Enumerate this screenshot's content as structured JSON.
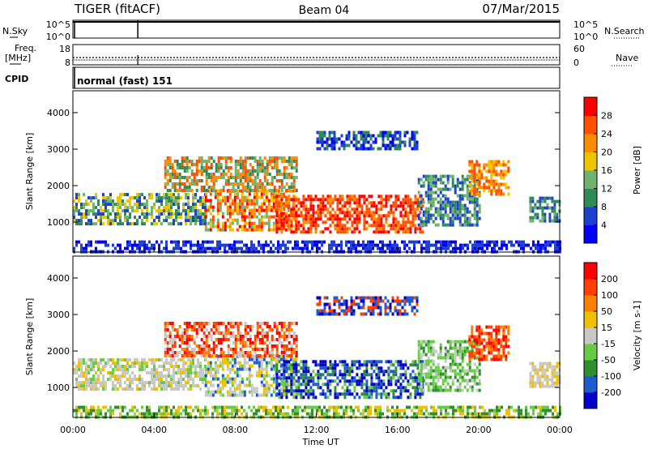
{
  "header": {
    "radar": "TIGER (fitACF)",
    "beam": "Beam 04",
    "date": "07/Mar/2015"
  },
  "nsky_panel": {
    "left_label": "N.Sky",
    "right_label": "N.Search",
    "left_ticks": [
      "10^5",
      "10^0"
    ],
    "right_ticks": [
      "10^5",
      "10^0"
    ]
  },
  "freq_panel": {
    "left_label_1": "Freq.",
    "left_label_2": "[MHz]",
    "right_label": "Nave",
    "left_ticks": [
      "18",
      "8"
    ],
    "right_ticks": [
      "60",
      "0"
    ]
  },
  "cpid_panel": {
    "label": "CPID",
    "value": "normal (fast) 151"
  },
  "chart_data": [
    {
      "type": "heatmap",
      "title": "",
      "ylabel": "Slant Range [km]",
      "xlabel": "",
      "ylim": [
        180,
        4600
      ],
      "yticks": [
        1000,
        2000,
        3000,
        4000
      ],
      "colorbar": {
        "label": "Power [dB]",
        "ticks": [
          "4",
          "8",
          "12",
          "16",
          "20",
          "24",
          "28"
        ],
        "range": [
          0,
          32
        ],
        "colors": [
          "#0000ff",
          "#1f3fd0",
          "#2e8b57",
          "#6fb36f",
          "#f0c400",
          "#ff8c00",
          "#ff5000",
          "#ff0000"
        ]
      }
    },
    {
      "type": "heatmap",
      "title": "",
      "ylabel": "Slant Range [km]",
      "xlabel": "Time UT",
      "ylim": [
        180,
        4600
      ],
      "yticks": [
        1000,
        2000,
        3000,
        4000
      ],
      "xlim_hours": [
        0,
        24
      ],
      "xticks": [
        "00:00",
        "04:00",
        "08:00",
        "12:00",
        "16:00",
        "20:00",
        "00:00"
      ],
      "colorbar": {
        "label": "Velocity [m s-1]",
        "ticks": [
          "200",
          "100",
          "50",
          "15",
          "-15",
          "-50",
          "-100",
          "-200"
        ],
        "colors": [
          "#0000cc",
          "#1e5ad0",
          "#2f8f2f",
          "#66cc44",
          "#c8c8c8",
          "#f0c000",
          "#ff8000",
          "#ff4000",
          "#ff0000"
        ]
      }
    }
  ]
}
